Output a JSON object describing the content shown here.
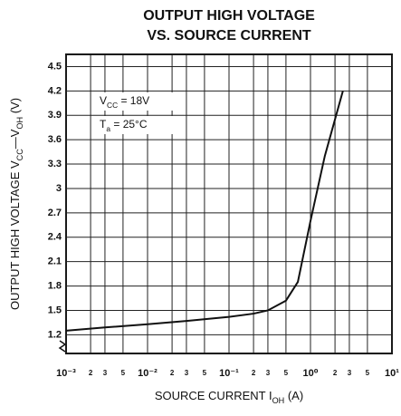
{
  "chart_data": {
    "type": "line",
    "title": [
      "OUTPUT HIGH VOLTAGE",
      "VS. SOURCE CURRENT"
    ],
    "y_label": [
      {
        "text": "OUTPUT HIGH VOLTAGE V"
      },
      {
        "text": "CC",
        "sub": true
      },
      {
        "text": "—V"
      },
      {
        "text": "OH",
        "sub": true
      },
      {
        "text": " (V)"
      }
    ],
    "x_label": [
      {
        "text": "SOURCE CURRENT I"
      },
      {
        "text": "OH",
        "sub": true
      },
      {
        "text": " (A)"
      }
    ],
    "annotations": [
      [
        {
          "text": "V"
        },
        {
          "text": "CC",
          "sub": true
        },
        {
          "text": " = 18V"
        }
      ],
      [
        {
          "text": "T"
        },
        {
          "text": "a",
          "sub": true
        },
        {
          "text": " = 25°C"
        }
      ]
    ],
    "x_log": true,
    "xlim": [
      0.001,
      10
    ],
    "xticks": [
      {
        "value": 0.001,
        "label": "10⁻³"
      },
      {
        "value": 0.002,
        "label": "2"
      },
      {
        "value": 0.003,
        "label": "3"
      },
      {
        "value": 0.005,
        "label": "5"
      },
      {
        "value": 0.01,
        "label": "10⁻²"
      },
      {
        "value": 0.02,
        "label": "2"
      },
      {
        "value": 0.03,
        "label": "3"
      },
      {
        "value": 0.05,
        "label": "5"
      },
      {
        "value": 0.1,
        "label": "10⁻¹"
      },
      {
        "value": 0.2,
        "label": "2"
      },
      {
        "value": 0.3,
        "label": "3"
      },
      {
        "value": 0.5,
        "label": "5"
      },
      {
        "value": 1,
        "label": "10⁰"
      },
      {
        "value": 2,
        "label": "2"
      },
      {
        "value": 3,
        "label": "3"
      },
      {
        "value": 5,
        "label": "5"
      },
      {
        "value": 10,
        "label": "10¹"
      }
    ],
    "ylim": [
      0.97,
      4.65
    ],
    "yticks": [
      1.2,
      1.5,
      1.8,
      2.1,
      2.4,
      2.7,
      3.0,
      3.3,
      3.6,
      3.9,
      4.2,
      4.5
    ],
    "grid": true,
    "x": [
      0.001,
      0.003,
      0.01,
      0.03,
      0.1,
      0.2,
      0.3,
      0.5,
      0.7,
      1.0,
      1.5,
      2.5
    ],
    "series": [
      {
        "color": "#111111",
        "values": [
          1.25,
          1.29,
          1.33,
          1.37,
          1.42,
          1.46,
          1.5,
          1.62,
          1.85,
          2.6,
          3.4,
          4.2
        ]
      }
    ]
  }
}
